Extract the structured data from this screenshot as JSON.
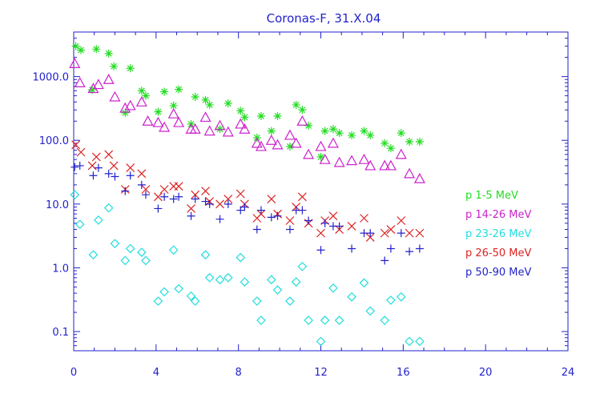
{
  "chart_data": {
    "type": "scatter",
    "title": "Coronas-F, 31.X.04",
    "xlabel": "",
    "ylabel": "",
    "xlim": [
      0,
      24
    ],
    "ylim": [
      0.05,
      5000
    ],
    "yscale": "log",
    "xticks": [
      0,
      4,
      8,
      12,
      16,
      20,
      24
    ],
    "xtick_labels": [
      "0",
      "4",
      "8",
      "12",
      "16",
      "20",
      "24"
    ],
    "yticks": [
      0.1,
      1,
      10,
      100,
      1000
    ],
    "ytick_labels": [
      "0.1",
      "1.0",
      "10.0",
      "100.0",
      "1000.0"
    ],
    "grid": false,
    "legend_position": "right",
    "series": [
      {
        "name": "p 1-5 MeV",
        "marker": "asterisk",
        "color": "#22dd22",
        "x": [
          0.1,
          0.35,
          0.9,
          1.1,
          1.7,
          1.95,
          2.5,
          2.75,
          3.3,
          3.5,
          4.1,
          4.4,
          4.85,
          5.1,
          5.7,
          5.9,
          6.4,
          6.6,
          7.1,
          7.5,
          8.1,
          8.3,
          8.9,
          9.1,
          9.6,
          9.9,
          10.5,
          10.8,
          11.1,
          11.4,
          12,
          12.2,
          12.6,
          12.9,
          13.5,
          14.1,
          14.4,
          15.1,
          15.4,
          15.9,
          16.3,
          16.8
        ],
        "y": [
          3000,
          2600,
          620,
          2700,
          2300,
          1450,
          270,
          1350,
          600,
          500,
          280,
          580,
          350,
          630,
          180,
          480,
          430,
          360,
          150,
          380,
          290,
          230,
          110,
          240,
          140,
          240,
          80,
          360,
          300,
          170,
          55,
          140,
          150,
          130,
          120,
          140,
          120,
          90,
          75,
          130,
          95,
          95
        ]
      },
      {
        "name": "p 14-26 MeV",
        "marker": "triangle",
        "color": "#cc22cc",
        "x": [
          0.05,
          0.3,
          0.95,
          1.2,
          1.7,
          2,
          2.5,
          2.75,
          3.3,
          3.6,
          4.1,
          4.4,
          4.85,
          5.1,
          5.7,
          5.9,
          6.4,
          6.6,
          7.1,
          7.5,
          8.1,
          8.3,
          8.9,
          9.1,
          9.6,
          9.9,
          10.5,
          10.8,
          11.1,
          11.4,
          12,
          12.2,
          12.6,
          12.9,
          13.5,
          14.1,
          14.4,
          15.1,
          15.4,
          15.9,
          16.3,
          16.8
        ],
        "y": [
          1600,
          800,
          650,
          750,
          900,
          480,
          320,
          350,
          400,
          200,
          190,
          160,
          260,
          190,
          150,
          150,
          230,
          140,
          170,
          135,
          180,
          150,
          90,
          80,
          100,
          85,
          120,
          90,
          200,
          60,
          80,
          50,
          90,
          45,
          48,
          50,
          40,
          40,
          40,
          60,
          30,
          25
        ]
      },
      {
        "name": "p 23-26 MeV",
        "marker": "diamond",
        "color": "#22dddd",
        "x": [
          0.05,
          0.3,
          0.95,
          1.2,
          1.7,
          2,
          2.5,
          2.75,
          3.3,
          3.5,
          4.1,
          4.4,
          4.85,
          5.1,
          5.7,
          5.9,
          6.4,
          6.6,
          7.1,
          7.5,
          8.1,
          8.3,
          8.9,
          9.1,
          9.6,
          9.9,
          10.5,
          10.8,
          11.1,
          11.4,
          12,
          12.2,
          12.6,
          12.9,
          13.5,
          14.1,
          14.4,
          15.1,
          15.4,
          15.9,
          16.3,
          16.8
        ],
        "y": [
          14,
          4.8,
          1.6,
          5.6,
          8.7,
          2.4,
          1.3,
          2,
          1.75,
          1.3,
          0.3,
          0.42,
          1.9,
          0.47,
          0.36,
          0.3,
          1.6,
          0.7,
          0.65,
          0.7,
          1.45,
          0.6,
          0.3,
          0.15,
          0.65,
          0.45,
          0.3,
          0.6,
          1.05,
          0.15,
          0.07,
          0.15,
          0.48,
          0.15,
          0.35,
          0.58,
          0.21,
          0.15,
          0.31,
          0.35,
          0.07,
          0.07
        ]
      },
      {
        "name": "p 26-50 MeV",
        "marker": "x",
        "color": "#dd2222",
        "x": [
          0.1,
          0.35,
          0.9,
          1.1,
          1.7,
          1.95,
          2.5,
          2.75,
          3.3,
          3.5,
          4.1,
          4.4,
          4.85,
          5.1,
          5.7,
          5.9,
          6.4,
          6.6,
          7.1,
          7.5,
          8.1,
          8.3,
          8.9,
          9.1,
          9.6,
          9.9,
          10.5,
          10.8,
          11.1,
          11.4,
          12,
          12.2,
          12.6,
          12.9,
          13.5,
          14.1,
          14.4,
          15.1,
          15.4,
          15.9,
          16.3,
          16.8
        ],
        "y": [
          85,
          65,
          40,
          55,
          60,
          40,
          17,
          37,
          30,
          17,
          13,
          17,
          19,
          19,
          8.5,
          14,
          16,
          11,
          10,
          12,
          14.5,
          10,
          6,
          7,
          12,
          7,
          5.5,
          9,
          13,
          5,
          3.5,
          5.5,
          6.5,
          4,
          4.5,
          6,
          3,
          3.5,
          4,
          5.5,
          3.5,
          3.5
        ]
      },
      {
        "name": "p 50-90 MeV",
        "marker": "plus",
        "color": "#2222cc",
        "x": [
          0.05,
          0.3,
          0.95,
          1.2,
          1.7,
          2,
          2.5,
          2.75,
          3.3,
          3.5,
          4.1,
          4.4,
          4.85,
          5.1,
          5.7,
          5.9,
          6.4,
          6.6,
          7.1,
          7.5,
          8.1,
          8.3,
          8.9,
          9.1,
          9.6,
          9.9,
          10.5,
          10.8,
          11.1,
          11.4,
          12,
          12.2,
          12.6,
          12.9,
          13.5,
          14.1,
          14.4,
          15.1,
          15.4,
          15.9,
          16.3,
          16.8
        ],
        "y": [
          38,
          40,
          28,
          37,
          30,
          27,
          16,
          28,
          20,
          14,
          8.5,
          13,
          12,
          13,
          6.5,
          12,
          11,
          10,
          5.8,
          10,
          8,
          9,
          4,
          8,
          6.2,
          6.5,
          4,
          8,
          8,
          5.5,
          1.9,
          5,
          4.5,
          4.5,
          2,
          3.5,
          3.5,
          1.3,
          2,
          3.5,
          1.8,
          2
        ]
      }
    ]
  }
}
